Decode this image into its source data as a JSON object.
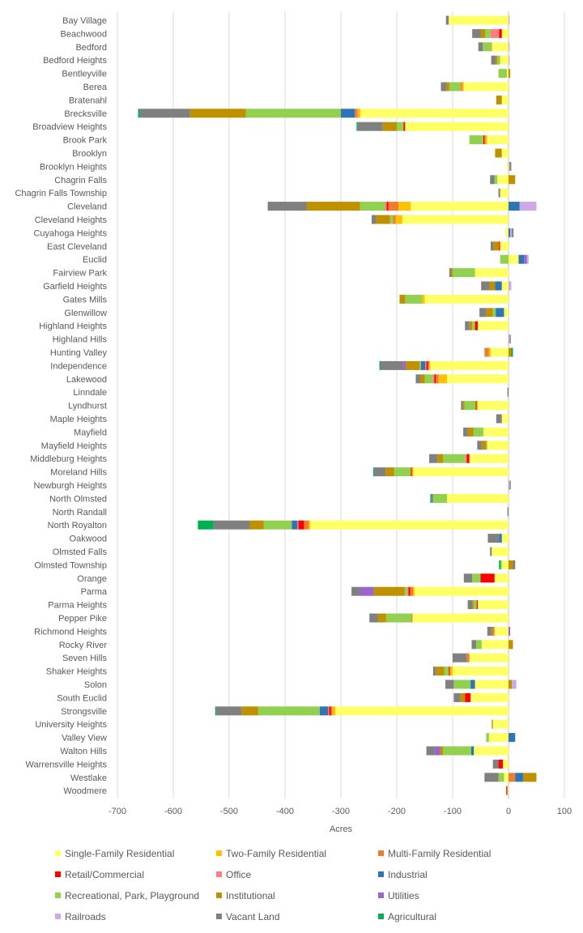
{
  "chart_data": {
    "type": "bar",
    "orientation": "horizontal",
    "stacked": true,
    "xlabel": "Acres",
    "xlim": [
      -700,
      100
    ],
    "xticks": [
      -700,
      -600,
      -500,
      -400,
      -300,
      -200,
      -100,
      0,
      100
    ],
    "gridlines": true,
    "legend_position": "bottom",
    "categories": [
      "Bay Village",
      "Beachwood",
      "Bedford",
      "Bedford Heights",
      "Bentleyville",
      "Berea",
      "Bratenahl",
      "Brecksville",
      "Broadview Heights",
      "Brook Park",
      "Brooklyn",
      "Brooklyn Heights",
      "Chagrin Falls",
      "Chagrin Falls Township",
      "Cleveland",
      "Cleveland Heights",
      "Cuyahoga Heights",
      "East Cleveland",
      "Euclid",
      "Fairview Park",
      "Garfield Heights",
      "Gates Mills",
      "Glenwillow",
      "Highland Heights",
      "Highland Hills",
      "Hunting Valley",
      "Independence",
      "Lakewood",
      "Linndale",
      "Lyndhurst",
      "Maple Heights",
      "Mayfield",
      "Mayfield Heights",
      "Middleburg Heights",
      "Moreland Hills",
      "Newburgh Heights",
      "North Olmsted",
      "North Randall",
      "North Royalton",
      "Oakwood",
      "Olmsted Falls",
      "Olmsted Township",
      "Orange",
      "Parma",
      "Parma Heights",
      "Pepper Pike",
      "Richmond Heights",
      "Rocky River",
      "Seven Hills",
      "Shaker Heights",
      "Solon",
      "South Euclid",
      "Strongsville",
      "University Heights",
      "Valley View",
      "Walton Hills",
      "Warrensville Heights",
      "Westlake",
      "Woodmere"
    ],
    "series": [
      {
        "name": "Single-Family Residential",
        "color": "#FFFF66",
        "values": [
          -107,
          -12,
          -30,
          -15,
          -3,
          -80,
          -12,
          -265,
          -185,
          -38,
          -12,
          -3,
          -20,
          -15,
          -175,
          -190,
          -5,
          -15,
          18,
          -60,
          -12,
          -150,
          -8,
          -55,
          0,
          -32,
          -140,
          -110,
          0,
          -55,
          -12,
          -45,
          -38,
          -70,
          -170,
          0,
          -110,
          0,
          -355,
          -12,
          -30,
          -12,
          -25,
          -168,
          -55,
          -172,
          -25,
          -48,
          -70,
          -100,
          -60,
          -68,
          -310,
          -28,
          -35,
          -62,
          -10,
          -8,
          -2
        ]
      },
      {
        "name": "Two-Family Residential",
        "color": "#FFC000",
        "values": [
          0,
          0,
          0,
          0,
          0,
          -3,
          0,
          -5,
          0,
          -3,
          0,
          0,
          0,
          0,
          -22,
          -12,
          0,
          0,
          0,
          0,
          0,
          -5,
          0,
          0,
          0,
          -3,
          -2,
          -15,
          0,
          -2,
          0,
          0,
          0,
          0,
          -3,
          0,
          0,
          0,
          -3,
          0,
          0,
          0,
          0,
          -3,
          0,
          0,
          0,
          0,
          0,
          -5,
          0,
          0,
          -5,
          0,
          0,
          0,
          0,
          0,
          0
        ]
      },
      {
        "name": "Multi-Family Residential",
        "color": "#ED7D31",
        "values": [
          0,
          0,
          -1,
          0,
          0,
          -3,
          0,
          -5,
          0,
          -2,
          0,
          0,
          0,
          0,
          -18,
          -5,
          0,
          0,
          0,
          0,
          0,
          0,
          0,
          0,
          0,
          -8,
          -2,
          -5,
          0,
          0,
          0,
          0,
          0,
          0,
          0,
          0,
          0,
          0,
          -8,
          0,
          0,
          0,
          0,
          -5,
          0,
          -2,
          -2,
          0,
          -5,
          0,
          0,
          0,
          -3,
          0,
          0,
          0,
          0,
          12,
          0
        ]
      },
      {
        "name": "Retail/Commercial",
        "color": "#FF0000",
        "values": [
          0,
          -5,
          0,
          0,
          0,
          0,
          0,
          0,
          -3,
          -2,
          0,
          0,
          0,
          0,
          -3,
          0,
          0,
          -2,
          0,
          0,
          0,
          0,
          0,
          -5,
          0,
          0,
          -3,
          -3,
          0,
          -2,
          0,
          0,
          0,
          -5,
          -2,
          0,
          0,
          0,
          -10,
          0,
          0,
          0,
          -25,
          -3,
          -2,
          0,
          0,
          0,
          0,
          -2,
          0,
          -10,
          -3,
          0,
          0,
          0,
          -8,
          0,
          -2
        ]
      },
      {
        "name": "Office",
        "color": "#FF7C80",
        "values": [
          0,
          -15,
          0,
          0,
          0,
          0,
          0,
          0,
          0,
          0,
          0,
          0,
          0,
          0,
          -3,
          0,
          0,
          0,
          0,
          0,
          0,
          0,
          0,
          0,
          0,
          0,
          -2,
          -2,
          0,
          0,
          0,
          0,
          0,
          -2,
          0,
          0,
          0,
          0,
          -2,
          0,
          0,
          0,
          0,
          -2,
          0,
          0,
          0,
          0,
          0,
          0,
          0,
          0,
          -2,
          0,
          0,
          0,
          0,
          0,
          0
        ]
      },
      {
        "name": "Industrial",
        "color": "#2E75B6",
        "values": [
          0,
          0,
          0,
          0,
          0,
          0,
          0,
          -25,
          0,
          0,
          0,
          0,
          0,
          0,
          20,
          0,
          3,
          0,
          10,
          0,
          -12,
          0,
          -15,
          0,
          0,
          0,
          -8,
          0,
          0,
          0,
          0,
          0,
          0,
          0,
          0,
          0,
          0,
          0,
          -10,
          -5,
          0,
          0,
          0,
          0,
          0,
          0,
          0,
          0,
          0,
          0,
          -8,
          0,
          -15,
          0,
          12,
          -5,
          0,
          14,
          0
        ]
      },
      {
        "name": "Recreational, Park, Playground",
        "color": "#92D050",
        "values": [
          0,
          -10,
          -15,
          -5,
          -15,
          -20,
          0,
          -170,
          -12,
          -25,
          0,
          0,
          -5,
          0,
          -45,
          -5,
          0,
          0,
          -15,
          -40,
          0,
          -30,
          -5,
          -5,
          0,
          0,
          -2,
          -15,
          0,
          -20,
          0,
          -18,
          -2,
          -40,
          -30,
          0,
          -25,
          0,
          -50,
          0,
          0,
          -2,
          -15,
          -5,
          -5,
          -45,
          0,
          -10,
          0,
          -8,
          -30,
          0,
          -110,
          0,
          -5,
          -50,
          0,
          -10,
          0
        ]
      },
      {
        "name": "Institutional",
        "color": "#BF9000",
        "values": [
          0,
          -8,
          0,
          -3,
          3,
          -5,
          -10,
          -100,
          -25,
          0,
          -12,
          0,
          12,
          0,
          -95,
          -25,
          0,
          -10,
          0,
          -3,
          -10,
          -10,
          -12,
          -5,
          0,
          5,
          -25,
          -8,
          0,
          -3,
          0,
          -10,
          -8,
          -10,
          -15,
          0,
          0,
          0,
          -25,
          0,
          0,
          8,
          0,
          -55,
          -3,
          -15,
          -3,
          8,
          0,
          -15,
          6,
          -8,
          -30,
          -2,
          0,
          -5,
          0,
          24,
          0
        ]
      },
      {
        "name": "Utilities",
        "color": "#9966CC",
        "values": [
          0,
          0,
          0,
          0,
          0,
          0,
          0,
          0,
          0,
          0,
          0,
          0,
          0,
          0,
          0,
          0,
          0,
          0,
          5,
          0,
          0,
          0,
          0,
          0,
          0,
          0,
          -5,
          0,
          0,
          0,
          0,
          0,
          0,
          0,
          0,
          0,
          0,
          0,
          0,
          0,
          0,
          0,
          0,
          -25,
          0,
          0,
          3,
          0,
          0,
          0,
          0,
          0,
          0,
          0,
          0,
          -10,
          0,
          0,
          0
        ]
      },
      {
        "name": "Railroads",
        "color": "#CCAAE6",
        "values": [
          2,
          0,
          2,
          2,
          0,
          0,
          0,
          0,
          0,
          0,
          0,
          2,
          0,
          0,
          30,
          0,
          3,
          0,
          3,
          0,
          5,
          0,
          0,
          0,
          2,
          0,
          0,
          0,
          0,
          0,
          0,
          0,
          0,
          0,
          0,
          2,
          0,
          0,
          0,
          0,
          0,
          0,
          0,
          0,
          0,
          0,
          0,
          0,
          0,
          0,
          8,
          0,
          0,
          0,
          0,
          0,
          0,
          0,
          0
        ]
      },
      {
        "name": "Vacant Land",
        "color": "#808080",
        "values": [
          -5,
          -15,
          -8,
          -8,
          0,
          -10,
          0,
          -90,
          -45,
          0,
          0,
          3,
          -8,
          -3,
          -70,
          -8,
          3,
          -5,
          0,
          -3,
          -15,
          0,
          -12,
          -8,
          2,
          0,
          -40,
          -8,
          -2,
          -3,
          -10,
          -8,
          -8,
          -15,
          -20,
          2,
          -3,
          -2,
          -65,
          -20,
          -3,
          4,
          -15,
          -15,
          -8,
          -15,
          -8,
          -8,
          -25,
          -5,
          -15,
          -12,
          -45,
          0,
          0,
          -15,
          -10,
          -25,
          0
        ]
      },
      {
        "name": "Agricultural",
        "color": "#00B050",
        "values": [
          0,
          0,
          0,
          0,
          0,
          0,
          0,
          -3,
          -2,
          0,
          0,
          0,
          0,
          0,
          0,
          0,
          0,
          0,
          0,
          0,
          0,
          0,
          0,
          0,
          0,
          3,
          -2,
          0,
          0,
          0,
          0,
          0,
          0,
          0,
          -2,
          0,
          -2,
          0,
          -28,
          0,
          0,
          -3,
          0,
          0,
          0,
          0,
          0,
          0,
          0,
          0,
          0,
          0,
          -2,
          0,
          0,
          0,
          0,
          0,
          0
        ]
      }
    ]
  }
}
